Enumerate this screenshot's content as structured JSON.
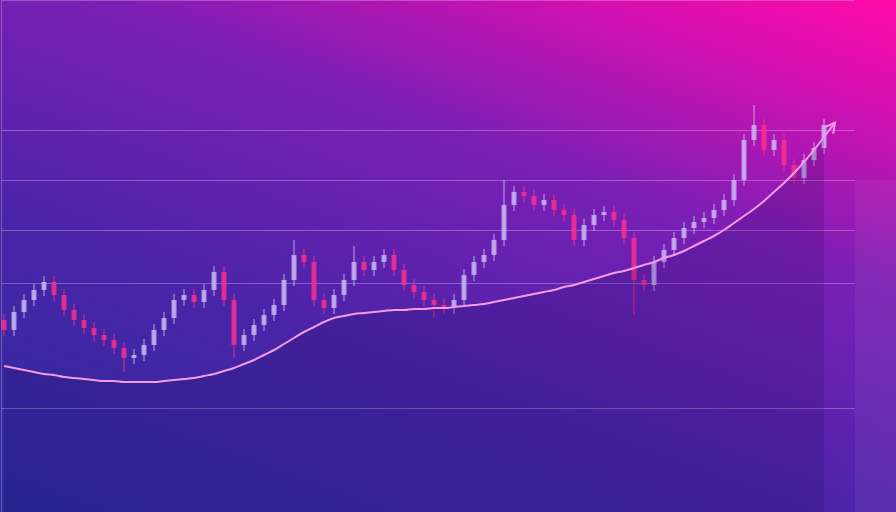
{
  "chart_data": {
    "type": "candlestick",
    "categories": [
      null,
      null,
      null,
      null,
      null,
      null,
      null,
      null,
      null,
      null,
      null,
      null,
      null,
      null,
      null,
      null,
      null,
      null,
      null,
      null,
      null,
      null,
      null,
      null,
      null,
      null,
      null,
      null,
      null,
      null,
      null,
      null,
      null,
      null,
      null,
      null,
      null,
      null,
      null,
      null,
      null,
      null,
      null,
      null,
      null,
      null,
      null,
      null,
      null,
      null,
      null,
      null,
      null,
      null,
      null,
      null,
      null,
      null,
      null,
      null,
      null,
      null,
      null,
      null,
      null,
      null,
      null,
      null,
      null,
      null,
      null,
      null,
      null,
      null,
      null,
      null,
      null,
      null,
      null,
      null,
      null,
      null,
      null
    ],
    "series": [
      {
        "type": "candlestick",
        "open": [
          192,
          182,
          200,
          212,
          222,
          230,
          217,
          202,
          192,
          184,
          177,
          172,
          164,
          154,
          157,
          167,
          182,
          194,
          212,
          217,
          210,
          222,
          240,
          212,
          167,
          177,
          187,
          197,
          207,
          232,
          257,
          250,
          212,
          204,
          217,
          232,
          250,
          242,
          250,
          257,
          242,
          227,
          220,
          212,
          207,
          204,
          212,
          237,
          250,
          257,
          272,
          307,
          320,
          316,
          307,
          312,
          302,
          297,
          272,
          287,
          297,
          300,
          292,
          274,
          232,
          227,
          250,
          262,
          274,
          284,
          290,
          294,
          302,
          312,
          332,
          372,
          387,
          362,
          372,
          347,
          334,
          352,
          364
        ],
        "high": [
          198,
          206,
          218,
          228,
          236,
          236,
          223,
          208,
          198,
          190,
          183,
          178,
          170,
          163,
          173,
          188,
          200,
          218,
          223,
          223,
          228,
          246,
          246,
          218,
          183,
          193,
          203,
          213,
          238,
          272,
          263,
          256,
          218,
          223,
          238,
          266,
          256,
          256,
          263,
          263,
          248,
          233,
          226,
          218,
          213,
          218,
          243,
          256,
          263,
          278,
          332,
          326,
          326,
          322,
          318,
          318,
          308,
          303,
          293,
          303,
          306,
          306,
          298,
          280,
          238,
          256,
          268,
          280,
          290,
          296,
          300,
          308,
          318,
          338,
          378,
          407,
          393,
          378,
          378,
          353,
          358,
          370,
          393
        ],
        "low": [
          176,
          176,
          194,
          206,
          216,
          211,
          196,
          186,
          178,
          171,
          166,
          158,
          140,
          148,
          151,
          161,
          176,
          188,
          206,
          204,
          204,
          216,
          206,
          154,
          161,
          171,
          181,
          191,
          201,
          226,
          244,
          206,
          198,
          198,
          211,
          226,
          236,
          236,
          244,
          236,
          221,
          214,
          206,
          194,
          198,
          198,
          206,
          231,
          244,
          251,
          266,
          301,
          310,
          301,
          301,
          296,
          291,
          266,
          266,
          281,
          291,
          286,
          268,
          197,
          221,
          221,
          244,
          256,
          268,
          278,
          284,
          288,
          296,
          306,
          326,
          366,
          356,
          356,
          341,
          328,
          328,
          346,
          358
        ],
        "close": [
          182,
          200,
          212,
          222,
          230,
          217,
          202,
          192,
          184,
          177,
          172,
          164,
          154,
          157,
          167,
          182,
          194,
          212,
          217,
          210,
          222,
          240,
          212,
          167,
          177,
          187,
          197,
          207,
          232,
          257,
          250,
          212,
          204,
          217,
          232,
          250,
          242,
          250,
          257,
          242,
          227,
          220,
          212,
          207,
          204,
          212,
          237,
          250,
          257,
          272,
          307,
          320,
          316,
          307,
          312,
          302,
          297,
          272,
          287,
          297,
          300,
          292,
          274,
          232,
          227,
          250,
          262,
          274,
          284,
          290,
          294,
          302,
          312,
          332,
          372,
          387,
          362,
          372,
          347,
          334,
          352,
          364,
          387
        ],
        "colors": [
          "#ff2e8c",
          "#cdbaf5",
          "#cdbaf5",
          "#cdbaf5",
          "#cdbaf5",
          "#ff2e8c",
          "#ff2e8c",
          "#ff2e8c",
          "#ff2e8c",
          "#ff2e8c",
          "#ff2e8c",
          "#ff2e8c",
          "#ff2e8c",
          "#cdbaf5",
          "#cdbaf5",
          "#cdbaf5",
          "#cdbaf5",
          "#cdbaf5",
          "#cdbaf5",
          "#ff2e8c",
          "#cdbaf5",
          "#cdbaf5",
          "#ff2e8c",
          "#ff2e8c",
          "#cdbaf5",
          "#cdbaf5",
          "#cdbaf5",
          "#cdbaf5",
          "#cdbaf5",
          "#cdbaf5",
          "#ff2e8c",
          "#ff2e8c",
          "#ff2e8c",
          "#cdbaf5",
          "#cdbaf5",
          "#cdbaf5",
          "#ff2e8c",
          "#cdbaf5",
          "#cdbaf5",
          "#ff2e8c",
          "#ff2e8c",
          "#ff2e8c",
          "#ff2e8c",
          "#ff2e8c",
          "#ff2e8c",
          "#cdbaf5",
          "#cdbaf5",
          "#cdbaf5",
          "#cdbaf5",
          "#cdbaf5",
          "#cdbaf5",
          "#cdbaf5",
          "#ff2e8c",
          "#ff2e8c",
          "#cdbaf5",
          "#ff2e8c",
          "#ff2e8c",
          "#ff2e8c",
          "#cdbaf5",
          "#cdbaf5",
          "#cdbaf5",
          "#ff2e8c",
          "#ff2e8c",
          "#ff2e8c",
          "#ff2e8c",
          "#cdbaf5",
          "#cdbaf5",
          "#cdbaf5",
          "#cdbaf5",
          "#cdbaf5",
          "#cdbaf5",
          "#cdbaf5",
          "#cdbaf5",
          "#cdbaf5",
          "#cdbaf5",
          "#cdbaf5",
          "#ff2e8c",
          "#cdbaf5",
          "#ff2e8c",
          "#ff2e8c",
          "#cdbaf5",
          "#cdbaf5",
          "#cdbaf5"
        ]
      },
      {
        "type": "line",
        "color": "#f59ae6",
        "values": [
          146,
          144,
          142,
          140,
          138,
          137,
          135,
          134,
          133,
          132,
          131,
          131,
          130,
          130,
          130,
          130,
          131,
          132,
          133,
          134,
          136,
          138,
          141,
          144,
          148,
          152,
          157,
          162,
          168,
          174,
          180,
          185,
          190,
          194,
          196,
          198,
          199,
          200,
          201,
          202,
          202,
          203,
          203,
          204,
          204,
          205,
          206,
          207,
          208,
          210,
          212,
          214,
          216,
          218,
          220,
          222,
          225,
          227,
          230,
          233,
          236,
          239,
          241,
          244,
          247,
          250,
          254,
          257,
          261,
          266,
          271,
          276,
          282,
          289,
          296,
          303,
          311,
          320,
          329,
          339,
          350,
          362,
          375
        ]
      }
    ],
    "ylim": [
      0,
      512
    ],
    "yticks": [
      104,
      229,
      282,
      332,
      382
    ],
    "grid": true,
    "tick_labels": false
  }
}
